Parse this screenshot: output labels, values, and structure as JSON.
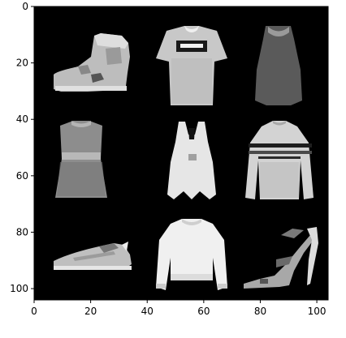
{
  "figure": {
    "background_color": "#ffffff",
    "image_background_color": "#000000",
    "grid": false,
    "x_axis": {
      "range": [
        0,
        104
      ],
      "ticks": [
        0,
        20,
        40,
        60,
        80,
        100
      ],
      "tick_labels": [
        "0",
        "20",
        "40",
        "60",
        "80",
        "100"
      ]
    },
    "y_axis": {
      "range": [
        0,
        104
      ],
      "inverted": true,
      "ticks": [
        0,
        20,
        40,
        60,
        80,
        100
      ],
      "tick_labels": [
        "0",
        "20",
        "40",
        "60",
        "80",
        "100"
      ]
    },
    "grid_layout": {
      "rows": 3,
      "cols": 3
    },
    "tiles": [
      {
        "row": 0,
        "col": 0,
        "icon": "ankle-boot-icon"
      },
      {
        "row": 0,
        "col": 1,
        "icon": "t-shirt-icon"
      },
      {
        "row": 0,
        "col": 2,
        "icon": "tank-dress-icon"
      },
      {
        "row": 1,
        "col": 0,
        "icon": "dress-icon"
      },
      {
        "row": 1,
        "col": 1,
        "icon": "tank-top-icon"
      },
      {
        "row": 1,
        "col": 2,
        "icon": "striped-sweater-icon"
      },
      {
        "row": 2,
        "col": 0,
        "icon": "sneaker-icon"
      },
      {
        "row": 2,
        "col": 1,
        "icon": "pullover-icon"
      },
      {
        "row": 2,
        "col": 2,
        "icon": "sandal-icon"
      }
    ]
  }
}
